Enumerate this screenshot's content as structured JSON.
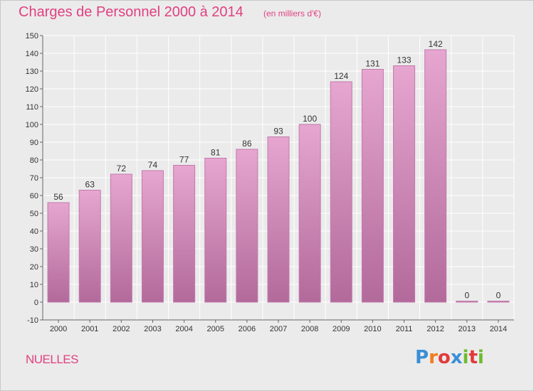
{
  "title": "Charges de Personnel 2000 à 2014",
  "subtitle": "(en milliers d'€)",
  "commune": "NUELLES",
  "logo": {
    "letters": [
      "P",
      "r",
      "o",
      "x",
      "i",
      "t",
      "i"
    ],
    "colors": [
      "#3a8fd6",
      "#f07e1b",
      "#e23a3a",
      "#3a8fd6",
      "#6dbb2e",
      "#e23a3a",
      "#6dbb2e"
    ]
  },
  "colors": {
    "bar": "#d88fbf",
    "bar_dark": "#b0669a",
    "title": "#e0417f",
    "grid": "#ffffff"
  },
  "chart_data": {
    "type": "bar",
    "title": "Charges de Personnel 2000 à 2014",
    "categories": [
      "2000",
      "2001",
      "2002",
      "2003",
      "2004",
      "2005",
      "2006",
      "2007",
      "2008",
      "2009",
      "2010",
      "2011",
      "2012",
      "2013",
      "2014"
    ],
    "values": [
      56,
      63,
      72,
      74,
      77,
      81,
      86,
      93,
      100,
      124,
      131,
      133,
      142,
      0,
      0
    ],
    "ylim": [
      -10,
      150
    ],
    "yticks": [
      -10,
      0,
      10,
      20,
      30,
      40,
      50,
      60,
      70,
      80,
      90,
      100,
      110,
      120,
      130,
      140,
      150
    ],
    "grid": true
  }
}
